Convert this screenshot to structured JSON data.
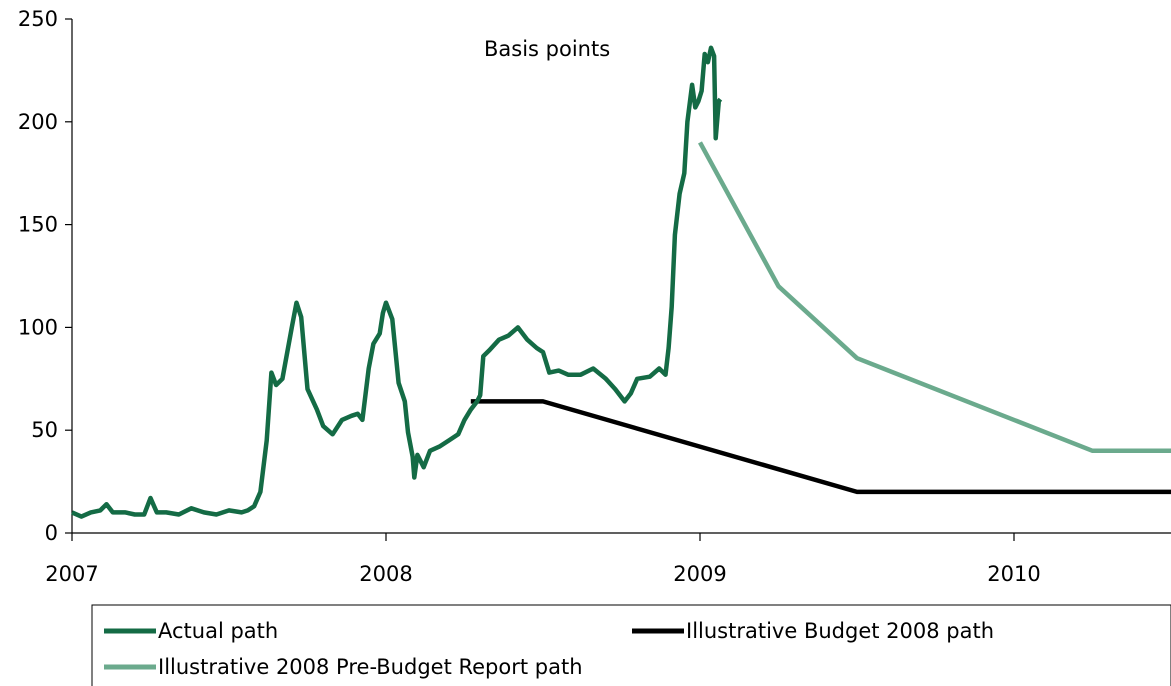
{
  "chart_data": {
    "type": "line",
    "title": "",
    "annotation": "Basis points",
    "xlabel": "",
    "ylabel": "",
    "xlim": [
      2007.0,
      2010.5
    ],
    "ylim": [
      0,
      250
    ],
    "x_ticks": [
      2007,
      2008,
      2009,
      2010
    ],
    "x_tick_labels": [
      "2007",
      "2008",
      "2009",
      "2010"
    ],
    "y_ticks": [
      0,
      50,
      100,
      150,
      200,
      250
    ],
    "y_tick_labels": [
      "0",
      "50",
      "100",
      "150",
      "200",
      "250"
    ],
    "grid": false,
    "legend_position": "bottom",
    "series": [
      {
        "name": "Actual path",
        "color": "#146B45",
        "points": [
          [
            2007.0,
            10
          ],
          [
            2007.03,
            8
          ],
          [
            2007.06,
            10
          ],
          [
            2007.09,
            11
          ],
          [
            2007.11,
            14
          ],
          [
            2007.13,
            10
          ],
          [
            2007.17,
            10
          ],
          [
            2007.2,
            9
          ],
          [
            2007.23,
            9
          ],
          [
            2007.25,
            17
          ],
          [
            2007.27,
            10
          ],
          [
            2007.3,
            10
          ],
          [
            2007.34,
            9
          ],
          [
            2007.38,
            12
          ],
          [
            2007.42,
            10
          ],
          [
            2007.46,
            9
          ],
          [
            2007.5,
            11
          ],
          [
            2007.54,
            10
          ],
          [
            2007.56,
            11
          ],
          [
            2007.58,
            13
          ],
          [
            2007.6,
            20
          ],
          [
            2007.62,
            45
          ],
          [
            2007.635,
            78
          ],
          [
            2007.65,
            72
          ],
          [
            2007.67,
            75
          ],
          [
            2007.7,
            100
          ],
          [
            2007.715,
            112
          ],
          [
            2007.73,
            105
          ],
          [
            2007.75,
            70
          ],
          [
            2007.78,
            60
          ],
          [
            2007.8,
            52
          ],
          [
            2007.83,
            48
          ],
          [
            2007.86,
            55
          ],
          [
            2007.89,
            57
          ],
          [
            2007.91,
            58
          ],
          [
            2007.925,
            55
          ],
          [
            2007.945,
            80
          ],
          [
            2007.96,
            92
          ],
          [
            2007.98,
            97
          ],
          [
            2007.99,
            107
          ],
          [
            2008.0,
            112
          ],
          [
            2008.02,
            104
          ],
          [
            2008.04,
            73
          ],
          [
            2008.06,
            64
          ],
          [
            2008.07,
            49
          ],
          [
            2008.085,
            37
          ],
          [
            2008.09,
            27
          ],
          [
            2008.1,
            38
          ],
          [
            2008.12,
            32
          ],
          [
            2008.14,
            40
          ],
          [
            2008.17,
            42
          ],
          [
            2008.2,
            45
          ],
          [
            2008.23,
            48
          ],
          [
            2008.25,
            55
          ],
          [
            2008.27,
            60
          ],
          [
            2008.29,
            64
          ],
          [
            2008.3,
            67
          ],
          [
            2008.31,
            86
          ],
          [
            2008.33,
            89
          ],
          [
            2008.36,
            94
          ],
          [
            2008.39,
            96
          ],
          [
            2008.42,
            100
          ],
          [
            2008.45,
            94
          ],
          [
            2008.48,
            90
          ],
          [
            2008.5,
            88
          ],
          [
            2008.52,
            78
          ],
          [
            2008.55,
            79
          ],
          [
            2008.58,
            77
          ],
          [
            2008.62,
            77
          ],
          [
            2008.66,
            80
          ],
          [
            2008.7,
            75
          ],
          [
            2008.73,
            70
          ],
          [
            2008.76,
            64
          ],
          [
            2008.78,
            68
          ],
          [
            2008.8,
            75
          ],
          [
            2008.84,
            76
          ],
          [
            2008.87,
            80
          ],
          [
            2008.89,
            77
          ],
          [
            2008.9,
            90
          ],
          [
            2008.91,
            110
          ],
          [
            2008.92,
            145
          ],
          [
            2008.935,
            165
          ],
          [
            2008.95,
            175
          ],
          [
            2008.96,
            200
          ],
          [
            2008.975,
            218
          ],
          [
            2008.985,
            207
          ],
          [
            2008.995,
            210
          ],
          [
            2009.005,
            215
          ],
          [
            2009.015,
            233
          ],
          [
            2009.025,
            229
          ],
          [
            2009.035,
            236
          ],
          [
            2009.045,
            232
          ],
          [
            2009.05,
            192
          ],
          [
            2009.06,
            210
          ],
          [
            2009.065,
            211
          ]
        ]
      },
      {
        "name": "Illustrative Budget 2008 path",
        "color": "#000000",
        "points": [
          [
            2008.27,
            64
          ],
          [
            2008.5,
            64
          ],
          [
            2009.5,
            20
          ],
          [
            2010.5,
            20
          ]
        ]
      },
      {
        "name": "Illustrative 2008 Pre-Budget Report path",
        "color": "#6BAA8D",
        "points": [
          [
            2009.0,
            190
          ],
          [
            2009.25,
            120
          ],
          [
            2009.5,
            85
          ],
          [
            2010.25,
            40
          ],
          [
            2010.5,
            40
          ]
        ]
      }
    ]
  }
}
